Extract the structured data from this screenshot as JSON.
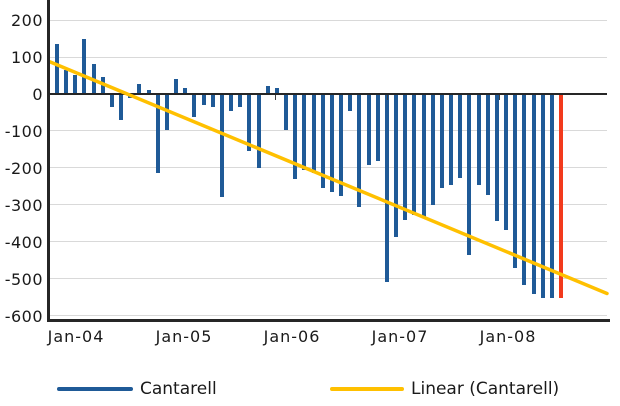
{
  "chart_data": {
    "type": "bar",
    "title": "",
    "x": [
      "Jan-04",
      "Feb-04",
      "Mar-04",
      "Apr-04",
      "May-04",
      "Jun-04",
      "Jul-04",
      "Aug-04",
      "Sep-04",
      "Oct-04",
      "Nov-04",
      "Dec-04",
      "Jan-05",
      "Feb-05",
      "Mar-05",
      "Apr-05",
      "May-05",
      "Jun-05",
      "Jul-05",
      "Aug-05",
      "Sep-05",
      "Oct-05",
      "Nov-05",
      "Dec-05",
      "Jan-06",
      "Feb-06",
      "Mar-06",
      "Apr-06",
      "May-06",
      "Jun-06",
      "Jul-06",
      "Aug-06",
      "Sep-06",
      "Oct-06",
      "Nov-06",
      "Dec-06",
      "Jan-07",
      "Feb-07",
      "Mar-07",
      "Apr-07",
      "May-07",
      "Jun-07",
      "Jul-07",
      "Aug-07",
      "Sep-07",
      "Oct-07",
      "Nov-07",
      "Dec-07",
      "Jan-08",
      "Feb-08",
      "Mar-08",
      "Apr-08",
      "May-08",
      "Jun-08",
      "Jul-08",
      "Aug-08"
    ],
    "series": [
      {
        "name": "Cantarell",
        "values": [
          135,
          65,
          51,
          148,
          80,
          47,
          -35,
          -70,
          -10,
          27,
          12,
          -215,
          -97,
          41,
          16,
          -61,
          -29,
          -34,
          -280,
          -47,
          -34,
          -153,
          -201,
          21,
          16,
          -97,
          -230,
          -206,
          -215,
          -255,
          -266,
          -277,
          -47,
          -307,
          -192,
          -181,
          -510,
          -386,
          -341,
          -327,
          -336,
          -300,
          -255,
          -246,
          -228,
          -436,
          -246,
          -273,
          -345,
          -368,
          -470,
          -517,
          -542,
          -551,
          -553,
          -553
        ]
      }
    ],
    "highlight": {
      "index": 55,
      "color": "#F23A1D"
    },
    "trendline": {
      "name": "Linear (Cantarell)",
      "value_at_left_edge": 87,
      "value_at_right_edge": -540,
      "color": "#FFC000"
    },
    "yticks": [
      200,
      100,
      0,
      -100,
      -200,
      -300,
      -400,
      -500,
      -600
    ],
    "ylim": [
      -600,
      200
    ],
    "xtick_labels": [
      "Jan-04",
      "Jan-05",
      "Jan-06",
      "Jan-07",
      "Jan-08"
    ],
    "grid": true,
    "legend_position": "bottom",
    "colors": {
      "bar": "#1F5A97",
      "highlight_bar": "#F23A1D",
      "trend": "#FFC000",
      "grid": "#D9D9D9",
      "axis": "#262626",
      "text": "#1A1A1A"
    }
  },
  "legend": {
    "items": [
      {
        "label": "Cantarell",
        "swatch_color": "#1F5A97"
      },
      {
        "label": "Linear (Cantarell)",
        "swatch_color": "#FFC000"
      }
    ]
  }
}
